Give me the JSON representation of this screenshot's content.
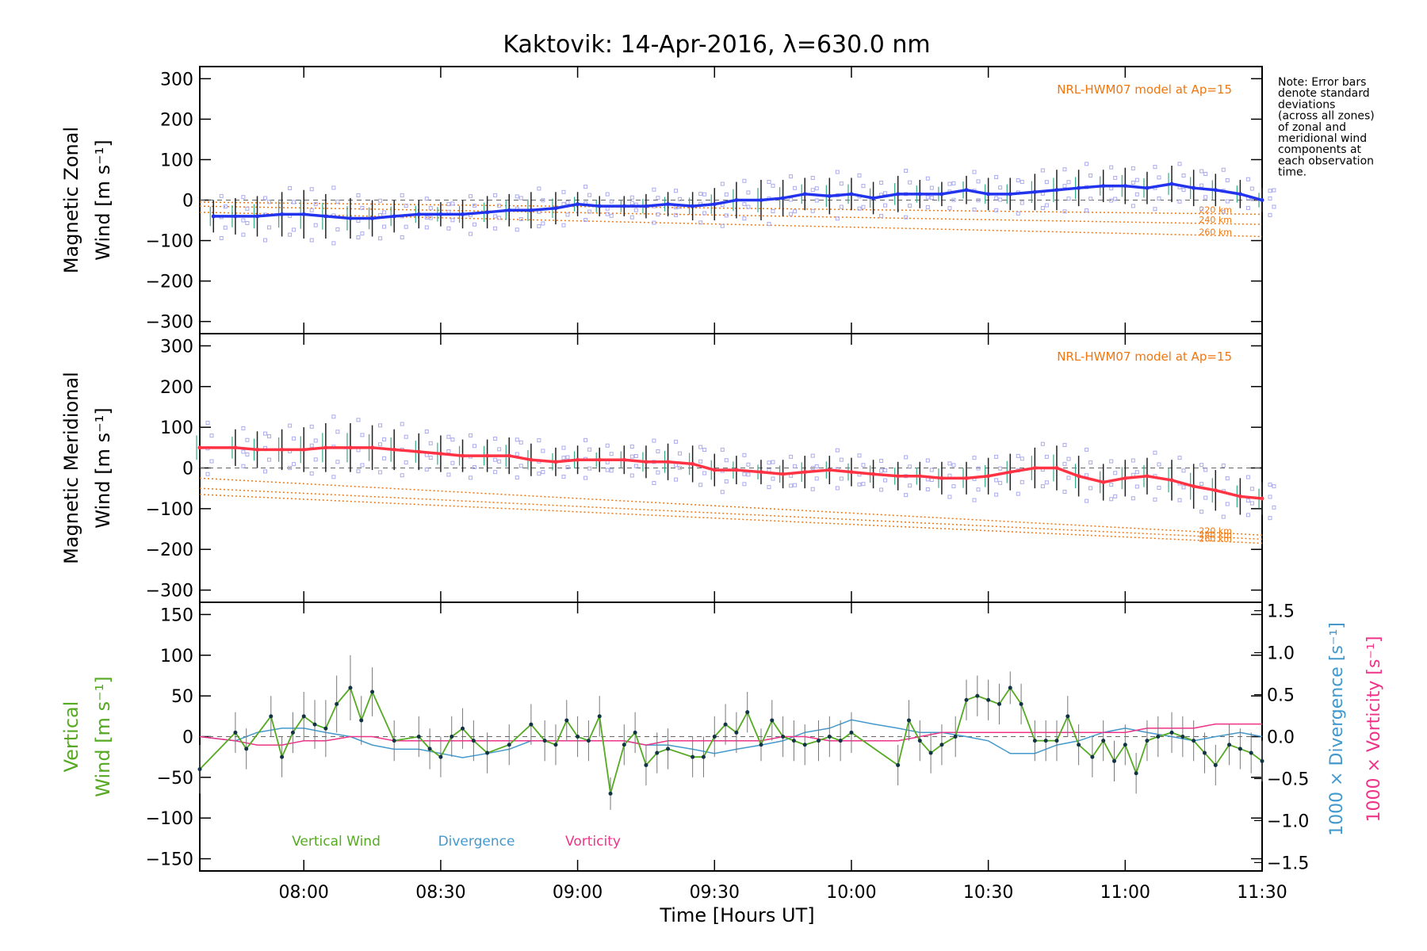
{
  "title": "Kaktovik: 14-Apr-2016, λ=630.0 nm",
  "note": [
    "Note: Error bars",
    "denote standard",
    "deviations",
    "(across all zones)",
    "of zonal and",
    "meridional wind",
    "components at",
    "each observation",
    "time."
  ],
  "colors": {
    "zonal": "#2233ee",
    "meridional": "#ff3344",
    "vertical": "#55aa22",
    "divergence": "#4499cc",
    "vorticity": "#ee3388",
    "model": "#ee7711",
    "samples": "#aaaaee",
    "errorbar": "#777777"
  },
  "chart_data": [
    {
      "type": "line",
      "panel": "zonal",
      "ylabel_lines": [
        "Magnetic Zonal",
        "Wind [m s⁻¹]"
      ],
      "ylim": [
        -330,
        330
      ],
      "yticks": [
        -300,
        -200,
        -100,
        0,
        100,
        200,
        300
      ],
      "model_label": "NRL-HWM07 model at Ap=15",
      "model_altitudes": [
        "220 km",
        "240 km",
        "260 km"
      ],
      "model_series": [
        {
          "name": "220 km",
          "x": [
            7.62,
            11.5
          ],
          "y": [
            -5,
            -35
          ]
        },
        {
          "name": "240 km",
          "x": [
            7.62,
            11.5
          ],
          "y": [
            -15,
            -60
          ]
        },
        {
          "name": "260 km",
          "x": [
            7.62,
            11.5
          ],
          "y": [
            -30,
            -90
          ]
        }
      ],
      "series": [
        {
          "name": "Zonal wind",
          "x": [
            7.67,
            7.75,
            7.83,
            7.92,
            8.0,
            8.08,
            8.17,
            8.25,
            8.33,
            8.42,
            8.5,
            8.58,
            8.67,
            8.75,
            8.83,
            8.92,
            9.0,
            9.08,
            9.17,
            9.25,
            9.33,
            9.42,
            9.5,
            9.58,
            9.67,
            9.75,
            9.83,
            9.92,
            10.0,
            10.08,
            10.17,
            10.25,
            10.33,
            10.42,
            10.5,
            10.58,
            10.67,
            10.75,
            10.83,
            10.92,
            11.0,
            11.08,
            11.17,
            11.25,
            11.33,
            11.42,
            11.5
          ],
          "y": [
            -40,
            -40,
            -40,
            -35,
            -35,
            -40,
            -45,
            -45,
            -40,
            -35,
            -35,
            -35,
            -30,
            -25,
            -25,
            -20,
            -10,
            -15,
            -15,
            -15,
            -10,
            -15,
            -10,
            0,
            0,
            5,
            15,
            10,
            15,
            5,
            15,
            15,
            15,
            25,
            15,
            15,
            20,
            25,
            30,
            35,
            35,
            30,
            40,
            30,
            25,
            15,
            0
          ],
          "err": [
            40,
            45,
            50,
            55,
            60,
            55,
            50,
            45,
            40,
            35,
            30,
            35,
            40,
            40,
            45,
            40,
            30,
            25,
            25,
            30,
            30,
            35,
            40,
            45,
            50,
            45,
            40,
            45,
            40,
            40,
            45,
            35,
            30,
            35,
            40,
            40,
            45,
            50,
            45,
            40,
            45,
            40,
            45,
            45,
            40,
            35,
            30
          ]
        }
      ]
    },
    {
      "type": "line",
      "panel": "meridional",
      "ylabel_lines": [
        "Magnetic Meridional",
        "Wind [m s⁻¹]"
      ],
      "ylim": [
        -330,
        330
      ],
      "yticks": [
        -300,
        -200,
        -100,
        0,
        100,
        200,
        300
      ],
      "model_label": "NRL-HWM07 model at Ap=15",
      "model_altitudes": [
        "220 km",
        "240 km",
        "260 km"
      ],
      "model_series": [
        {
          "name": "220 km",
          "x": [
            7.62,
            11.5
          ],
          "y": [
            -25,
            -165
          ]
        },
        {
          "name": "240 km",
          "x": [
            7.62,
            11.5
          ],
          "y": [
            -50,
            -175
          ]
        },
        {
          "name": "260 km",
          "x": [
            7.62,
            11.5
          ],
          "y": [
            -65,
            -185
          ]
        }
      ],
      "series": [
        {
          "name": "Meridional wind",
          "x": [
            7.62,
            7.75,
            7.83,
            7.92,
            8.0,
            8.08,
            8.17,
            8.25,
            8.33,
            8.42,
            8.5,
            8.58,
            8.67,
            8.75,
            8.83,
            8.92,
            9.0,
            9.08,
            9.17,
            9.25,
            9.33,
            9.42,
            9.5,
            9.58,
            9.67,
            9.75,
            9.83,
            9.92,
            10.0,
            10.08,
            10.17,
            10.25,
            10.33,
            10.42,
            10.5,
            10.58,
            10.67,
            10.75,
            10.83,
            10.92,
            11.0,
            11.08,
            11.17,
            11.25,
            11.33,
            11.42,
            11.5
          ],
          "y": [
            50,
            50,
            45,
            45,
            45,
            50,
            50,
            50,
            45,
            40,
            35,
            30,
            30,
            30,
            20,
            15,
            20,
            20,
            20,
            15,
            15,
            10,
            -5,
            -5,
            -10,
            -15,
            -10,
            -5,
            -10,
            -15,
            -20,
            -20,
            -25,
            -25,
            -20,
            -10,
            0,
            0,
            -20,
            -35,
            -25,
            -20,
            -30,
            -45,
            -55,
            -70,
            -75
          ],
          "err": [
            50,
            45,
            45,
            50,
            55,
            60,
            60,
            55,
            50,
            45,
            45,
            40,
            40,
            45,
            40,
            35,
            35,
            30,
            35,
            40,
            45,
            45,
            40,
            35,
            30,
            35,
            40,
            35,
            35,
            35,
            35,
            35,
            40,
            40,
            45,
            45,
            50,
            55,
            50,
            45,
            45,
            45,
            50,
            55,
            50,
            45,
            40
          ]
        }
      ]
    },
    {
      "type": "line",
      "panel": "vertical",
      "ylabel_lines": [
        "Vertical",
        "Wind [m s⁻¹]"
      ],
      "ylabel_right": [
        "1000 × Divergence [s⁻¹]",
        "1000 × Vorticity [s⁻¹]"
      ],
      "ylim": [
        -165,
        165
      ],
      "yticks": [
        -150,
        -100,
        -50,
        0,
        50,
        100,
        150
      ],
      "ylim_right": [
        -1.6,
        1.6
      ],
      "yticks_right": [
        -1.5,
        -1.0,
        -0.5,
        0.0,
        0.5,
        1.0,
        1.5
      ],
      "xlabel": "Time [Hours UT]",
      "xlim": [
        7.62,
        11.5
      ],
      "xticks": [
        8.0,
        8.5,
        9.0,
        9.5,
        10.0,
        10.5,
        11.0,
        11.5
      ],
      "xticklabels": [
        "08:00",
        "08:30",
        "09:00",
        "09:30",
        "10:00",
        "10:30",
        "11:00",
        "11:30"
      ],
      "legend": [
        "Vertical Wind",
        "Divergence",
        "Vorticity"
      ],
      "series": [
        {
          "name": "Vertical Wind",
          "x": [
            7.62,
            7.75,
            7.79,
            7.88,
            7.92,
            7.96,
            8.0,
            8.04,
            8.08,
            8.12,
            8.17,
            8.21,
            8.25,
            8.33,
            8.42,
            8.46,
            8.5,
            8.54,
            8.58,
            8.62,
            8.67,
            8.75,
            8.83,
            8.88,
            8.92,
            8.96,
            9.0,
            9.04,
            9.08,
            9.12,
            9.17,
            9.21,
            9.25,
            9.29,
            9.33,
            9.42,
            9.46,
            9.5,
            9.54,
            9.58,
            9.62,
            9.67,
            9.71,
            9.75,
            9.79,
            9.83,
            9.88,
            9.92,
            9.96,
            10.0,
            10.17,
            10.21,
            10.25,
            10.29,
            10.33,
            10.38,
            10.42,
            10.46,
            10.5,
            10.54,
            10.58,
            10.62,
            10.67,
            10.71,
            10.75,
            10.79,
            10.83,
            10.88,
            10.92,
            10.96,
            11.0,
            11.04,
            11.08,
            11.12,
            11.17,
            11.21,
            11.25,
            11.29,
            11.33,
            11.38,
            11.42,
            11.46,
            11.5
          ],
          "y": [
            -40,
            5,
            -15,
            25,
            -25,
            5,
            25,
            15,
            10,
            40,
            60,
            20,
            55,
            -5,
            0,
            -15,
            -25,
            0,
            10,
            -5,
            -20,
            -10,
            15,
            -5,
            -10,
            20,
            0,
            -5,
            25,
            -70,
            -10,
            5,
            -35,
            -20,
            -15,
            -25,
            -25,
            0,
            15,
            5,
            30,
            -10,
            20,
            0,
            -5,
            -10,
            -5,
            0,
            -5,
            5,
            -35,
            20,
            -5,
            -20,
            -10,
            0,
            45,
            50,
            45,
            40,
            60,
            40,
            -5,
            -5,
            -5,
            25,
            -10,
            -25,
            -5,
            -30,
            -10,
            -45,
            -5,
            0,
            5,
            0,
            -5,
            -20,
            -35,
            -10,
            -15,
            -20,
            -30
          ],
          "err": [
            30,
            25,
            25,
            25,
            25,
            25,
            30,
            30,
            35,
            35,
            40,
            30,
            30,
            25,
            25,
            25,
            25,
            25,
            25,
            25,
            25,
            25,
            25,
            25,
            25,
            25,
            25,
            25,
            25,
            20,
            25,
            25,
            25,
            25,
            25,
            25,
            25,
            25,
            25,
            25,
            25,
            20,
            25,
            25,
            25,
            25,
            25,
            25,
            25,
            25,
            25,
            25,
            25,
            25,
            25,
            25,
            25,
            25,
            25,
            25,
            20,
            25,
            25,
            25,
            25,
            25,
            25,
            25,
            25,
            25,
            25,
            25,
            25,
            25,
            25,
            25,
            25,
            25,
            25,
            25,
            25,
            25,
            25
          ]
        },
        {
          "name": "Divergence",
          "x": [
            7.62,
            7.75,
            7.83,
            7.92,
            8.0,
            8.08,
            8.17,
            8.25,
            8.33,
            8.42,
            8.5,
            8.58,
            8.67,
            8.75,
            8.83,
            8.92,
            9.0,
            9.08,
            9.17,
            9.25,
            9.33,
            9.42,
            9.5,
            9.58,
            9.67,
            9.75,
            9.83,
            9.92,
            10.0,
            10.08,
            10.17,
            10.25,
            10.33,
            10.42,
            10.5,
            10.58,
            10.67,
            10.75,
            10.83,
            10.92,
            11.0,
            11.08,
            11.17,
            11.25,
            11.33,
            11.42,
            11.5
          ],
          "y": [
            0.0,
            -0.05,
            0.05,
            0.1,
            0.1,
            0.05,
            0.0,
            -0.1,
            -0.15,
            -0.15,
            -0.2,
            -0.25,
            -0.2,
            -0.15,
            -0.05,
            -0.05,
            -0.05,
            -0.05,
            -0.05,
            -0.1,
            -0.1,
            -0.15,
            -0.2,
            -0.15,
            -0.1,
            -0.05,
            0.05,
            0.1,
            0.2,
            0.15,
            0.1,
            0.05,
            0.05,
            0.0,
            -0.05,
            -0.2,
            -0.2,
            -0.1,
            -0.05,
            0.05,
            0.1,
            0.05,
            0.0,
            -0.05,
            0.0,
            0.05,
            0.0
          ]
        },
        {
          "name": "Vorticity",
          "x": [
            7.62,
            7.75,
            7.83,
            7.92,
            8.0,
            8.08,
            8.17,
            8.25,
            8.33,
            8.42,
            8.5,
            8.58,
            8.67,
            8.75,
            8.83,
            8.92,
            9.0,
            9.08,
            9.17,
            9.25,
            9.33,
            9.42,
            9.5,
            9.58,
            9.67,
            9.75,
            9.83,
            9.92,
            10.0,
            10.08,
            10.17,
            10.25,
            10.33,
            10.42,
            10.5,
            10.58,
            10.67,
            10.75,
            10.83,
            10.92,
            11.0,
            11.08,
            11.17,
            11.25,
            11.33,
            11.42,
            11.5
          ],
          "y": [
            0.0,
            -0.05,
            -0.1,
            -0.1,
            -0.05,
            -0.05,
            0.0,
            0.0,
            -0.05,
            -0.05,
            -0.05,
            -0.05,
            -0.05,
            -0.05,
            -0.05,
            -0.05,
            -0.05,
            -0.05,
            -0.05,
            -0.1,
            -0.05,
            -0.05,
            -0.05,
            -0.05,
            -0.05,
            0.0,
            0.0,
            -0.05,
            -0.05,
            -0.05,
            -0.05,
            0.0,
            0.05,
            0.05,
            0.05,
            0.05,
            0.05,
            0.05,
            0.05,
            0.05,
            0.05,
            0.1,
            0.1,
            0.1,
            0.15,
            0.15,
            0.15
          ]
        }
      ]
    }
  ]
}
